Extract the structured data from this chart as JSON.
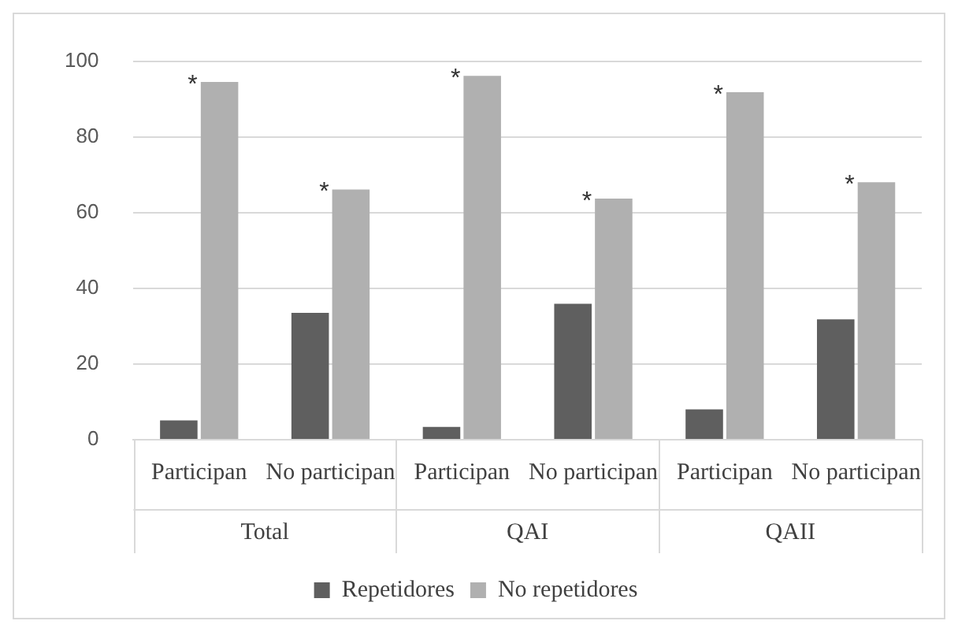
{
  "chart_data": {
    "type": "bar",
    "categories": [
      "Participan",
      "No participan",
      "Participan",
      "No participan",
      "Participan",
      "No participan"
    ],
    "series": [
      {
        "name": "Repetidores",
        "color": "#5f5f5f",
        "values": [
          5.1,
          33.5,
          3.4,
          35.9,
          8.0,
          31.8
        ]
      },
      {
        "name": "No repetidores",
        "color": "#b0b0b0",
        "values": [
          94.5,
          66.1,
          96.1,
          63.7,
          91.8,
          68.0
        ],
        "value_labels": [
          "*",
          "*",
          "*",
          "*",
          "*",
          "*"
        ]
      }
    ],
    "annotations": [
      "Total",
      "QAI",
      "QAII"
    ],
    "ylim": [
      0,
      100
    ],
    "yticks": [
      0,
      20,
      40,
      60,
      80,
      100
    ],
    "grid": "y",
    "legend": "bottom"
  }
}
